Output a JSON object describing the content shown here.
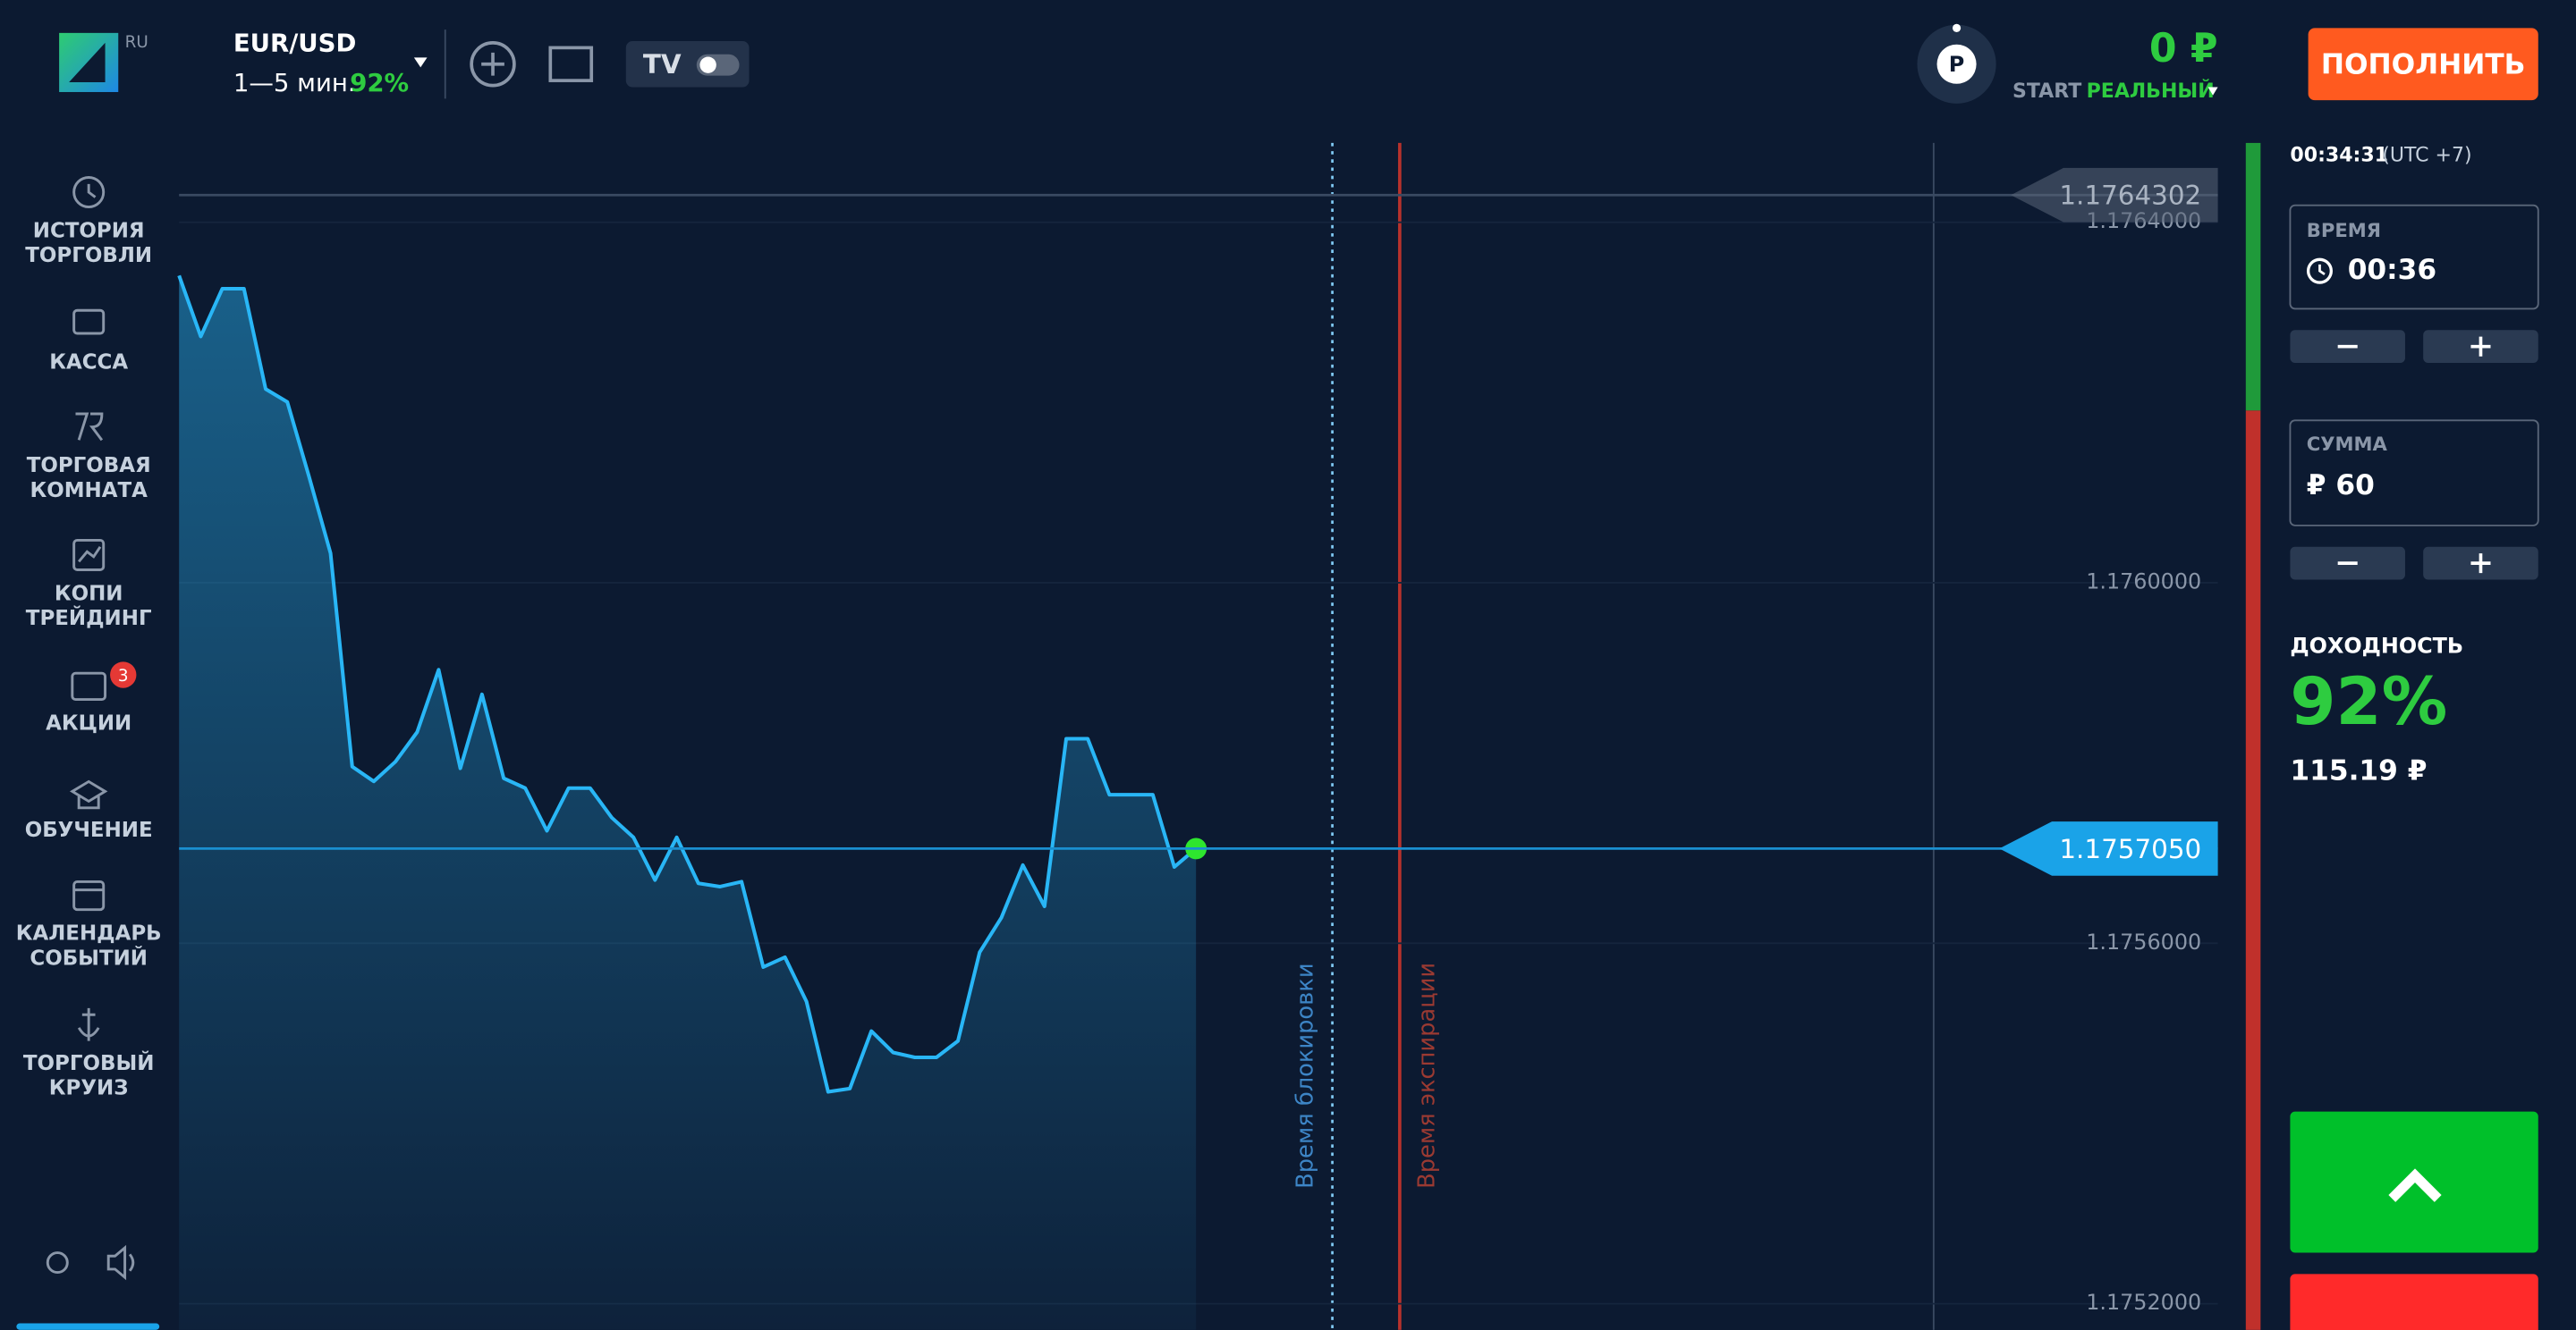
{
  "header": {
    "logo_badge": "RU",
    "asset": "EUR/USD",
    "period": "1—5 мин.",
    "payout": "92%",
    "avatar": "P",
    "balance": "0 ₽",
    "account_type": "START",
    "account_mode": "РЕАЛЬНЫЙ",
    "deposit_button": "ПОПОЛНИТЬ"
  },
  "sidebar": {
    "items": [
      {
        "lines": [
          "ИСТОРИЯ",
          "ТОРГОВЛИ"
        ]
      },
      {
        "lines": [
          "КАССА"
        ]
      },
      {
        "lines": [
          "ТОРГОВАЯ",
          "КОМНАТА"
        ]
      },
      {
        "lines": [
          "КОПИ",
          "ТРЕЙДИНГ"
        ]
      },
      {
        "lines": [
          "АКЦИИ"
        ],
        "badge": "3"
      },
      {
        "lines": [
          "ОБУЧЕНИЕ"
        ]
      },
      {
        "lines": [
          "КАЛЕНДАРЬ",
          "СОБЫТИЙ"
        ]
      },
      {
        "lines": [
          "ТОРГОВЫЙ",
          "КРУИЗ"
        ]
      }
    ]
  },
  "chart_data": {
    "type": "line",
    "color": "#29b6f6",
    "values": [
      1.1763408,
      1.1762733,
      1.1763262,
      1.1763262,
      1.176215,
      1.1762005,
      1.1761184,
      1.1760328,
      1.1757959,
      1.1757795,
      1.1758014,
      1.1758342,
      1.1759034,
      1.1757941,
      1.1758761,
      1.1757831,
      1.1757722,
      1.1757248,
      1.1757722,
      1.1757722,
      1.1757394,
      1.1757175,
      1.1756702,
      1.1757175,
      1.1756665,
      1.1756629,
      1.1756683,
      1.1755736,
      1.1755845,
      1.1755353,
      1.1754351,
      1.1754387,
      1.1755025,
      1.1754788,
      1.1754734,
      1.1754734,
      1.1754916,
      1.17559,
      1.1756283,
      1.1756866,
      1.175641,
      1.1758269,
      1.1758269,
      1.1757649,
      1.1757649,
      1.1757649,
      1.1756847,
      1.175705
    ],
    "ylim": [
      1.175171,
      1.176488
    ],
    "yticks": [
      {
        "value": 1.1764,
        "label": "1.1764000"
      },
      {
        "value": 1.176,
        "label": "1.1760000"
      },
      {
        "value": 1.1756,
        "label": "1.1756000"
      },
      {
        "value": 1.1752,
        "label": "1.1752000"
      }
    ],
    "price_lines": [
      {
        "value": 1.1764302,
        "label": "1.1764302"
      },
      {
        "value": 1.175705,
        "label": "1.1757050"
      }
    ],
    "annotations": [
      "Время блокировки",
      "Время экспирации"
    ]
  },
  "panel": {
    "clock": "00:34:31",
    "timezone": "(UTC +7)",
    "time_label": "ВРЕМЯ",
    "time_value": "00:36",
    "amount_label": "СУММА",
    "amount_value": "₽ 60",
    "yield_label": "ДОХОДНОСТЬ",
    "yield_value": "92%",
    "payout_amount": "115.19 ₽"
  }
}
